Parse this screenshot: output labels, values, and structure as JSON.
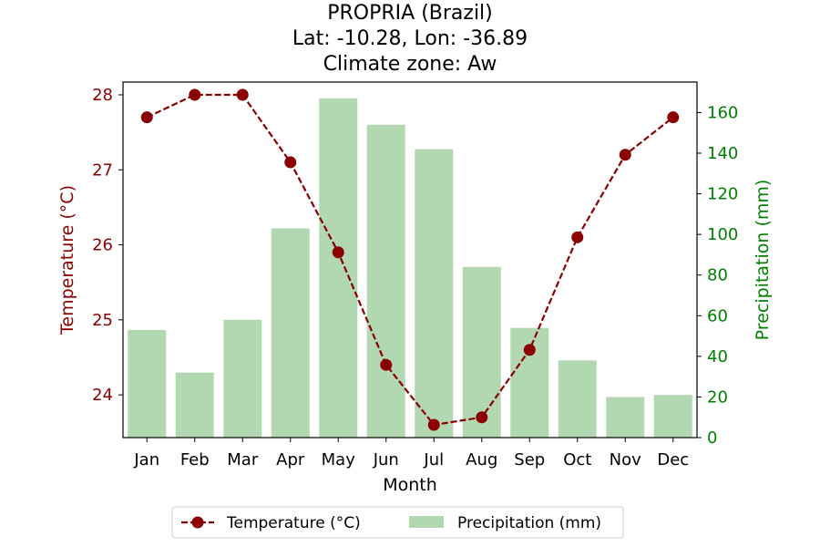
{
  "chart_data": {
    "type": "bar+line",
    "title_lines": [
      "PROPRIA (Brazil)",
      "Lat: -10.28, Lon: -36.89",
      "Climate zone: Aw"
    ],
    "categories": [
      "Jan",
      "Feb",
      "Mar",
      "Apr",
      "May",
      "Jun",
      "Jul",
      "Aug",
      "Sep",
      "Oct",
      "Nov",
      "Dec"
    ],
    "xlabel": "Month",
    "temperature": {
      "name": "Temperature (°C)",
      "axis_label": "Temperature (°C)",
      "color": "#8b0000",
      "values": [
        27.7,
        28.0,
        28.0,
        27.1,
        25.9,
        24.4,
        23.6,
        23.7,
        24.6,
        26.1,
        27.2,
        27.7
      ],
      "ylim": [
        23.43,
        28.17
      ],
      "ticks": [
        24,
        25,
        26,
        27,
        28
      ]
    },
    "precipitation": {
      "name": "Precipitation (mm)",
      "axis_label": "Precipitation (mm)",
      "color": "#008000",
      "bar_color": "#b2d8b2",
      "values": [
        53,
        32,
        58,
        103,
        167,
        154,
        142,
        84,
        54,
        38,
        20,
        21
      ],
      "ylim": [
        0,
        175
      ],
      "ticks": [
        0,
        20,
        40,
        60,
        80,
        100,
        120,
        140,
        160
      ]
    },
    "legend": {
      "position": "bottom-center",
      "entries": [
        "Temperature (°C)",
        "Precipitation (mm)"
      ]
    },
    "grid": false
  }
}
